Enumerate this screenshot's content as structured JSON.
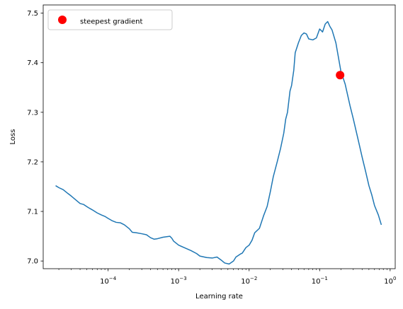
{
  "chart_data": {
    "type": "line",
    "title": "",
    "xlabel": "Learning rate",
    "ylabel": "Loss",
    "xscale": "log",
    "xlim": [
      1.2e-05,
      1.18
    ],
    "ylim": [
      6.9845,
      7.5165
    ],
    "x_ticks": [
      {
        "value": 0.0001,
        "base": "10",
        "exp": "−4"
      },
      {
        "value": 0.001,
        "base": "10",
        "exp": "−3"
      },
      {
        "value": 0.01,
        "base": "10",
        "exp": "−2"
      },
      {
        "value": 0.1,
        "base": "10",
        "exp": "−1"
      },
      {
        "value": 1,
        "base": "10",
        "exp": "0"
      }
    ],
    "y_ticks": [
      {
        "value": 7.0,
        "label": "7.0"
      },
      {
        "value": 7.1,
        "label": "7.1"
      },
      {
        "value": 7.2,
        "label": "7.2"
      },
      {
        "value": 7.3,
        "label": "7.3"
      },
      {
        "value": 7.4,
        "label": "7.4"
      },
      {
        "value": 7.5,
        "label": "7.5"
      }
    ],
    "grid": false,
    "legend": {
      "position": "upper-left",
      "entries": [
        "steepest gradient"
      ]
    },
    "series": [
      {
        "color": "#1f77b4",
        "points": [
          [
            1.8e-05,
            7.152
          ],
          [
            2e-05,
            7.148
          ],
          [
            2.3e-05,
            7.144
          ],
          [
            2.7e-05,
            7.136
          ],
          [
            3e-05,
            7.131
          ],
          [
            3.5e-05,
            7.123
          ],
          [
            4e-05,
            7.116
          ],
          [
            4.5e-05,
            7.114
          ],
          [
            5.2e-05,
            7.108
          ],
          [
            6e-05,
            7.103
          ],
          [
            7e-05,
            7.097
          ],
          [
            8e-05,
            7.093
          ],
          [
            9e-05,
            7.09
          ],
          [
            0.0001,
            7.086
          ],
          [
            0.000115,
            7.081
          ],
          [
            0.00013,
            7.078
          ],
          [
            0.00015,
            7.077
          ],
          [
            0.00017,
            7.073
          ],
          [
            0.0002,
            7.065
          ],
          [
            0.00022,
            7.058
          ],
          [
            0.00025,
            7.057
          ],
          [
            0.0003,
            7.055
          ],
          [
            0.00035,
            7.053
          ],
          [
            0.0004,
            7.047
          ],
          [
            0.00045,
            7.044
          ],
          [
            0.0005,
            7.045
          ],
          [
            0.0006,
            7.048
          ],
          [
            0.00075,
            7.05
          ],
          [
            0.0008,
            7.046
          ],
          [
            0.00085,
            7.04
          ],
          [
            0.001,
            7.032
          ],
          [
            0.0012,
            7.027
          ],
          [
            0.0015,
            7.021
          ],
          [
            0.0018,
            7.015
          ],
          [
            0.002,
            7.01
          ],
          [
            0.0025,
            7.007
          ],
          [
            0.003,
            7.006
          ],
          [
            0.0035,
            7.008
          ],
          [
            0.004,
            7.002
          ],
          [
            0.0045,
            6.996
          ],
          [
            0.0052,
            6.994
          ],
          [
            0.006,
            7.0
          ],
          [
            0.0065,
            7.008
          ],
          [
            0.0075,
            7.014
          ],
          [
            0.008,
            7.016
          ],
          [
            0.009,
            7.027
          ],
          [
            0.01,
            7.032
          ],
          [
            0.011,
            7.042
          ],
          [
            0.012,
            7.057
          ],
          [
            0.014,
            7.066
          ],
          [
            0.016,
            7.091
          ],
          [
            0.018,
            7.11
          ],
          [
            0.02,
            7.14
          ],
          [
            0.022,
            7.17
          ],
          [
            0.025,
            7.2
          ],
          [
            0.028,
            7.228
          ],
          [
            0.031,
            7.258
          ],
          [
            0.033,
            7.286
          ],
          [
            0.035,
            7.3
          ],
          [
            0.038,
            7.343
          ],
          [
            0.04,
            7.354
          ],
          [
            0.043,
            7.385
          ],
          [
            0.045,
            7.42
          ],
          [
            0.05,
            7.44
          ],
          [
            0.055,
            7.455
          ],
          [
            0.06,
            7.46
          ],
          [
            0.065,
            7.458
          ],
          [
            0.07,
            7.448
          ],
          [
            0.08,
            7.446
          ],
          [
            0.09,
            7.45
          ],
          [
            0.1,
            7.468
          ],
          [
            0.11,
            7.462
          ],
          [
            0.12,
            7.478
          ],
          [
            0.13,
            7.483
          ],
          [
            0.14,
            7.473
          ],
          [
            0.15,
            7.466
          ],
          [
            0.17,
            7.44
          ],
          [
            0.2,
            7.383
          ],
          [
            0.23,
            7.357
          ],
          [
            0.27,
            7.313
          ],
          [
            0.3,
            7.287
          ],
          [
            0.35,
            7.246
          ],
          [
            0.4,
            7.21
          ],
          [
            0.45,
            7.18
          ],
          [
            0.5,
            7.152
          ],
          [
            0.55,
            7.133
          ],
          [
            0.6,
            7.112
          ],
          [
            0.68,
            7.093
          ],
          [
            0.75,
            7.073
          ]
        ]
      }
    ],
    "marker": {
      "label": "steepest gradient",
      "x": 0.195,
      "y": 7.375,
      "color": "#ff0000"
    }
  }
}
